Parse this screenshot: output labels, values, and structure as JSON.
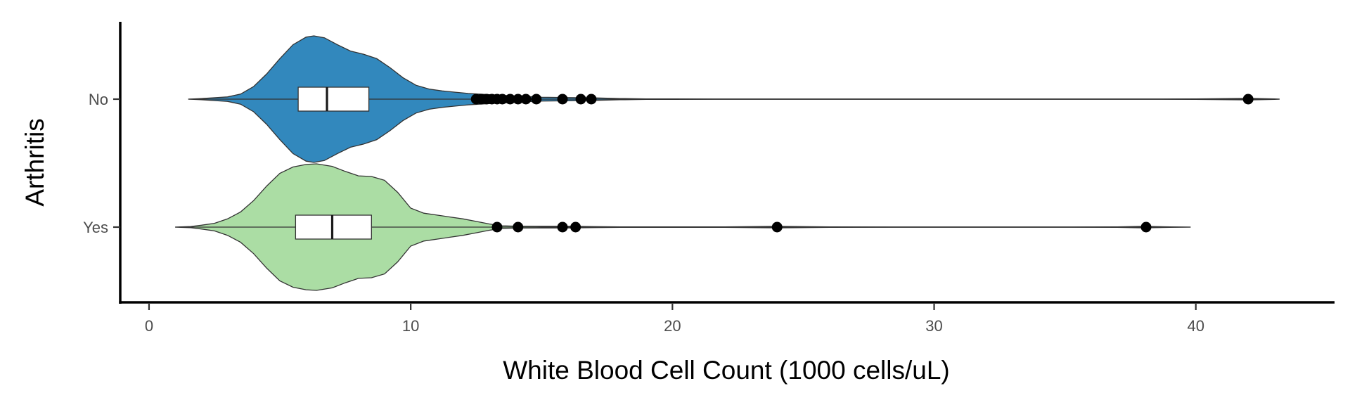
{
  "chart_data": {
    "type": "violin",
    "title": "",
    "xlabel": "White Blood Cell Count (1000 cells/uL)",
    "ylabel": "Arthritis",
    "xlim": [
      -1.1,
      45.3
    ],
    "x_ticks": [
      0,
      10,
      20,
      30,
      40
    ],
    "categories": [
      "No",
      "Yes"
    ],
    "grid": false,
    "legend": "none",
    "series": [
      {
        "category": "No",
        "color": "#3288bd",
        "range": [
          1.5,
          43.2
        ],
        "box": {
          "q1": 5.7,
          "median": 6.8,
          "q3": 8.4
        },
        "whiskers": [
          1.5,
          12.4
        ],
        "outliers": [
          12.5,
          12.7,
          12.9,
          13.1,
          13.3,
          13.5,
          13.8,
          14.1,
          14.4,
          14.8,
          15.8,
          16.5,
          16.9,
          42.0
        ],
        "density": [
          [
            1.5,
            0.0
          ],
          [
            2.0,
            0.01
          ],
          [
            3.0,
            0.035
          ],
          [
            3.5,
            0.08
          ],
          [
            4.0,
            0.2
          ],
          [
            4.5,
            0.4
          ],
          [
            5.0,
            0.64
          ],
          [
            5.5,
            0.86
          ],
          [
            6.0,
            0.98
          ],
          [
            6.3,
            1.0
          ],
          [
            6.7,
            0.97
          ],
          [
            7.2,
            0.86
          ],
          [
            7.7,
            0.76
          ],
          [
            8.2,
            0.71
          ],
          [
            8.7,
            0.64
          ],
          [
            9.2,
            0.5
          ],
          [
            9.7,
            0.34
          ],
          [
            10.2,
            0.22
          ],
          [
            10.7,
            0.16
          ],
          [
            11.2,
            0.13
          ],
          [
            11.7,
            0.11
          ],
          [
            12.2,
            0.09
          ],
          [
            13.0,
            0.07
          ],
          [
            14.0,
            0.05
          ],
          [
            15.0,
            0.03
          ],
          [
            16.0,
            0.025
          ],
          [
            17.0,
            0.02
          ],
          [
            18.0,
            0.01
          ],
          [
            19.0,
            0.005
          ],
          [
            20.0,
            0.003
          ],
          [
            25.0,
            0.002
          ],
          [
            30.0,
            0.002
          ],
          [
            35.0,
            0.002
          ],
          [
            40.0,
            0.003
          ],
          [
            41.0,
            0.008
          ],
          [
            42.0,
            0.012
          ],
          [
            43.0,
            0.005
          ],
          [
            43.2,
            0.0
          ]
        ]
      },
      {
        "category": "Yes",
        "color": "#abdda4",
        "range": [
          1.0,
          39.8
        ],
        "box": {
          "q1": 5.6,
          "median": 7.0,
          "q3": 8.5
        },
        "whiskers": [
          1.0,
          13.0
        ],
        "outliers": [
          13.3,
          14.1,
          15.8,
          16.3,
          24.0,
          38.1
        ],
        "density": [
          [
            1.0,
            0.0
          ],
          [
            1.6,
            0.01
          ],
          [
            2.0,
            0.03
          ],
          [
            2.5,
            0.06
          ],
          [
            3.0,
            0.13
          ],
          [
            3.5,
            0.24
          ],
          [
            4.0,
            0.42
          ],
          [
            4.5,
            0.65
          ],
          [
            5.0,
            0.85
          ],
          [
            5.5,
            0.95
          ],
          [
            6.0,
            0.99
          ],
          [
            6.4,
            1.0
          ],
          [
            7.0,
            0.96
          ],
          [
            7.5,
            0.88
          ],
          [
            8.0,
            0.81
          ],
          [
            8.5,
            0.8
          ],
          [
            9.0,
            0.74
          ],
          [
            9.5,
            0.55
          ],
          [
            10.0,
            0.3
          ],
          [
            10.5,
            0.22
          ],
          [
            11.0,
            0.19
          ],
          [
            11.5,
            0.16
          ],
          [
            12.0,
            0.13
          ],
          [
            12.5,
            0.09
          ],
          [
            13.0,
            0.05
          ],
          [
            13.5,
            0.02
          ],
          [
            14.0,
            0.016
          ],
          [
            15.0,
            0.013
          ],
          [
            16.0,
            0.013
          ],
          [
            17.0,
            0.008
          ],
          [
            18.0,
            0.005
          ],
          [
            20.0,
            0.003
          ],
          [
            22.0,
            0.004
          ],
          [
            24.0,
            0.012
          ],
          [
            26.0,
            0.003
          ],
          [
            30.0,
            0.002
          ],
          [
            34.0,
            0.002
          ],
          [
            37.0,
            0.004
          ],
          [
            38.0,
            0.012
          ],
          [
            39.0,
            0.005
          ],
          [
            39.8,
            0.0
          ]
        ]
      }
    ]
  }
}
